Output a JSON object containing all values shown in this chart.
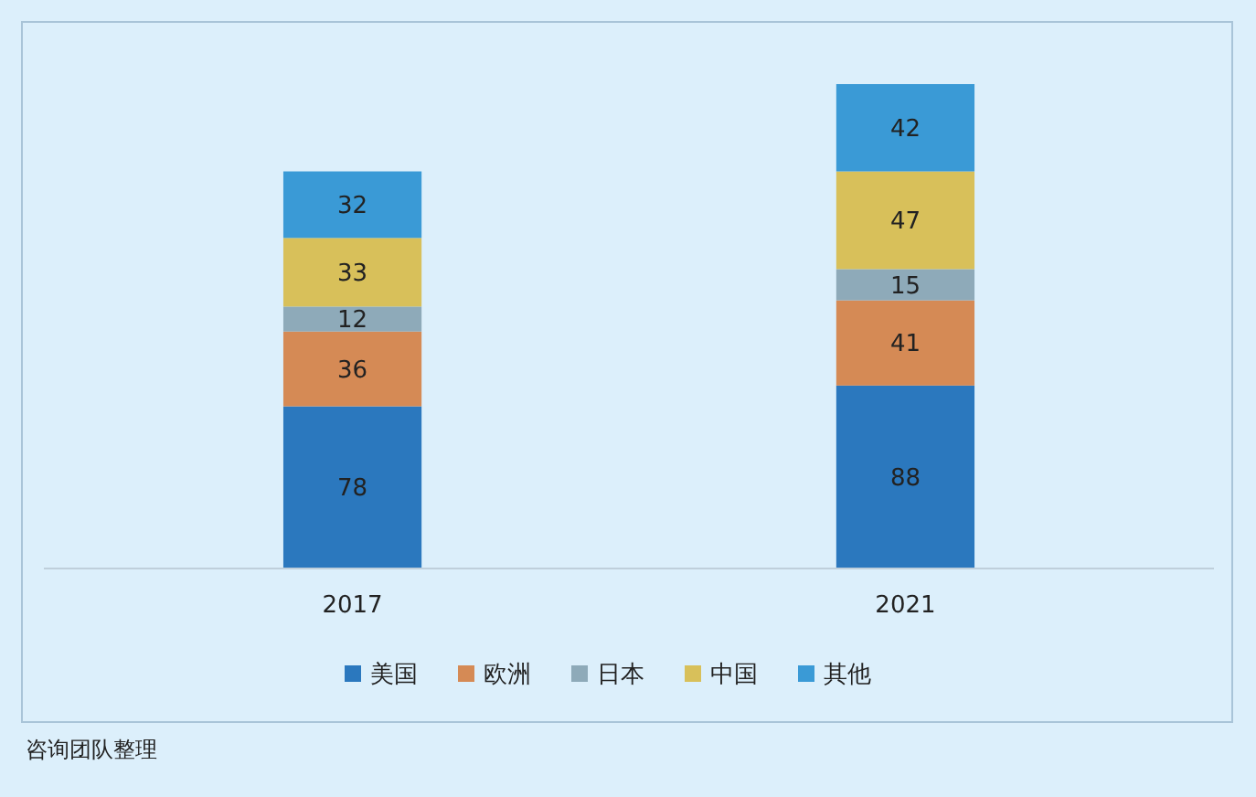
{
  "chart_data": {
    "type": "bar",
    "stacked": true,
    "data_labels": true,
    "legend": "bottom",
    "categories": [
      "2017",
      "2021"
    ],
    "series": [
      {
        "name": "美国",
        "color": "#2b78be",
        "values": [
          78,
          88
        ]
      },
      {
        "name": "欧洲",
        "color": "#d58a55",
        "values": [
          36,
          41
        ]
      },
      {
        "name": "日本",
        "color": "#8eaab9",
        "values": [
          12,
          15
        ]
      },
      {
        "name": "中国",
        "color": "#d8c05a",
        "values": [
          33,
          47
        ]
      },
      {
        "name": "其他",
        "color": "#3a9ad6",
        "values": [
          32,
          42
        ]
      }
    ],
    "annotations": [
      "咨询团队整理"
    ]
  }
}
